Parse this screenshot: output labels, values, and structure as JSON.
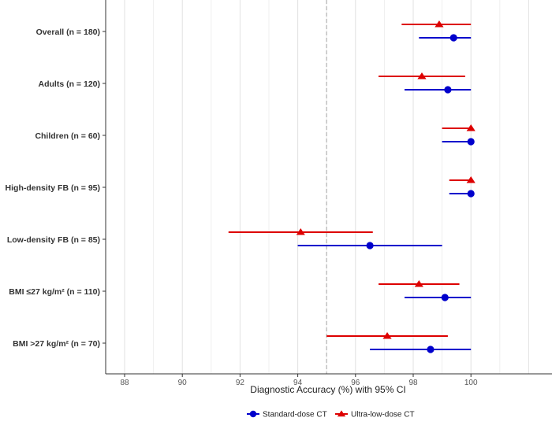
{
  "chart_data": {
    "type": "forest",
    "xlabel": "Diagnostic Accuracy (%) with 95% CI",
    "xlim": [
      87.3,
      102.7
    ],
    "x_ticks": [
      88,
      90,
      92,
      94,
      96,
      98,
      100
    ],
    "reference_line": 95,
    "grid": "vertical",
    "legend_position": "bottom",
    "categories": [
      "Overall (n = 180)",
      "Adults (n = 120)",
      "Children (n = 60)",
      "High-density FB (n = 95)",
      "Low-density FB (n = 85)",
      "BMI ≤27 kg/m² (n = 110)",
      "BMI >27 kg/m² (n = 70)"
    ],
    "series": [
      {
        "name": "Standard-dose CT",
        "color": "#0000cc",
        "marker": "circle",
        "estimates": [
          99.4,
          99.2,
          100.0,
          100.0,
          96.5,
          99.1,
          98.6
        ],
        "lower": [
          98.2,
          97.7,
          99.0,
          99.25,
          94.0,
          97.7,
          96.5
        ],
        "upper": [
          100.0,
          100.0,
          100.0,
          100.0,
          99.0,
          100.0,
          100.0
        ]
      },
      {
        "name": "Ultra-low-dose CT",
        "color": "#dd0000",
        "marker": "triangle",
        "estimates": [
          98.9,
          98.3,
          100.0,
          100.0,
          94.1,
          98.2,
          97.1
        ],
        "lower": [
          97.6,
          96.8,
          99.0,
          99.25,
          91.6,
          96.8,
          95.0
        ],
        "upper": [
          100.0,
          99.8,
          100.0,
          100.0,
          96.6,
          99.6,
          99.2
        ]
      }
    ]
  }
}
